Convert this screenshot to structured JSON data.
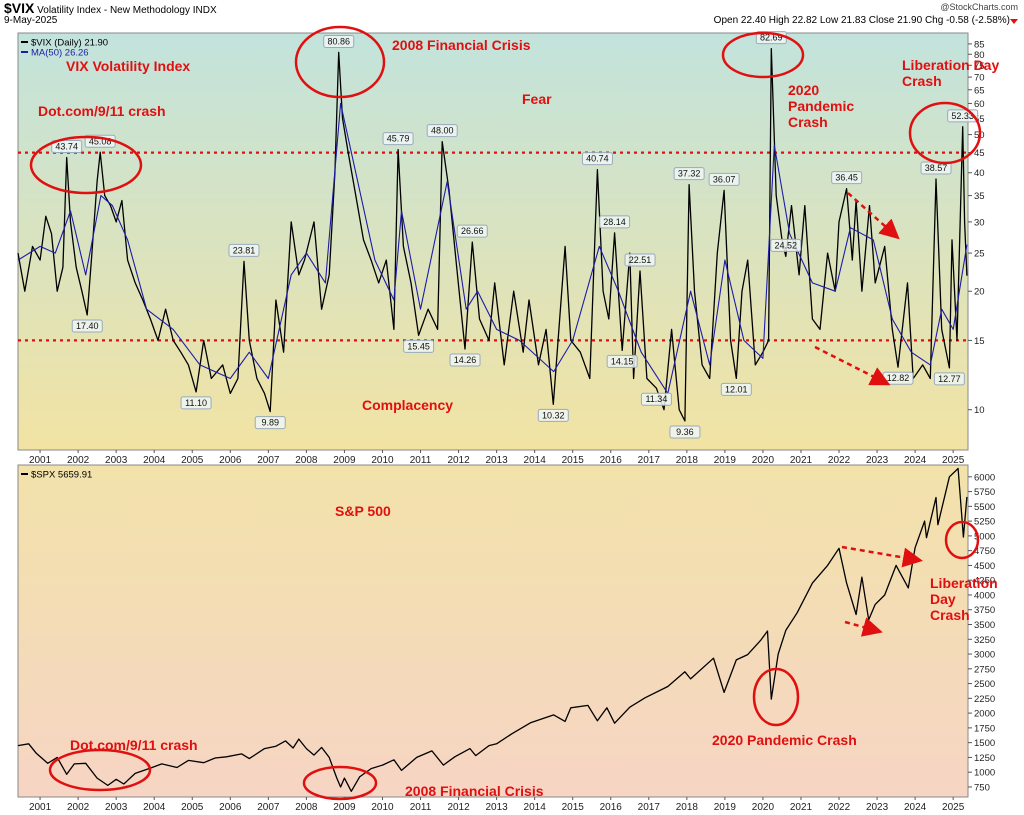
{
  "header": {
    "symbol": "$VIX",
    "name": "Volatility Index - New Methodology INDX",
    "date": "9-May-2025",
    "source": "@StockCharts.com",
    "ohlc": "Open 22.40 High 22.82 Low 21.83 Close 21.90",
    "change": "Chg -0.58 (-2.58%)"
  },
  "chart_data": [
    {
      "type": "line",
      "log_scale": true,
      "xlim": [
        2000.42,
        2025.39
      ],
      "xticks": [
        2001,
        2002,
        2003,
        2004,
        2005,
        2006,
        2007,
        2008,
        2009,
        2010,
        2011,
        2012,
        2013,
        2014,
        2015,
        2016,
        2017,
        2018,
        2019,
        2020,
        2021,
        2022,
        2023,
        2024,
        2025
      ],
      "ylim": [
        7.9,
        90.6
      ],
      "yticks": [
        10,
        15,
        20,
        25,
        30,
        35,
        40,
        45,
        50,
        55,
        60,
        65,
        70,
        75,
        80,
        85
      ],
      "reference_lines": [
        45,
        15
      ],
      "reference_color": "#e01010",
      "series": [
        {
          "name": "$VIX (Daily) 21.90",
          "color": "#000000",
          "x": [
            2000.42,
            2000.6,
            2000.8,
            2001.0,
            2001.15,
            2001.3,
            2001.45,
            2001.6,
            2001.7,
            2001.8,
            2001.95,
            2002.1,
            2002.24,
            2002.35,
            2002.5,
            2002.58,
            2002.7,
            2002.85,
            2003.0,
            2003.15,
            2003.3,
            2003.5,
            2003.7,
            2003.9,
            2004.1,
            2004.3,
            2004.5,
            2004.7,
            2004.9,
            2005.1,
            2005.3,
            2005.5,
            2005.8,
            2006.0,
            2006.2,
            2006.36,
            2006.5,
            2006.7,
            2006.9,
            2007.05,
            2007.2,
            2007.4,
            2007.6,
            2007.8,
            2007.95,
            2008.2,
            2008.4,
            2008.6,
            2008.75,
            2008.85,
            2008.95,
            2009.1,
            2009.3,
            2009.5,
            2009.7,
            2009.9,
            2010.1,
            2010.3,
            2010.41,
            2010.55,
            2010.75,
            2010.95,
            2011.2,
            2011.45,
            2011.57,
            2011.75,
            2011.95,
            2012.17,
            2012.36,
            2012.55,
            2012.8,
            2012.95,
            2013.2,
            2013.45,
            2013.7,
            2013.85,
            2014.1,
            2014.3,
            2014.49,
            2014.8,
            2014.95,
            2015.2,
            2015.45,
            2015.65,
            2015.8,
            2015.95,
            2016.1,
            2016.3,
            2016.5,
            2016.6,
            2016.77,
            2016.95,
            2017.2,
            2017.4,
            2017.6,
            2017.8,
            2017.95,
            2018.06,
            2018.2,
            2018.4,
            2018.6,
            2018.8,
            2018.98,
            2019.15,
            2019.3,
            2019.45,
            2019.6,
            2019.8,
            2020.0,
            2020.15,
            2020.22,
            2020.35,
            2020.5,
            2020.6,
            2020.75,
            2020.95,
            2021.1,
            2021.3,
            2021.5,
            2021.7,
            2021.9,
            2022.0,
            2022.2,
            2022.35,
            2022.45,
            2022.6,
            2022.8,
            2022.95,
            2023.2,
            2023.4,
            2023.55,
            2023.8,
            2023.95,
            2024.2,
            2024.4,
            2024.55,
            2024.7,
            2024.9,
            2024.97,
            2025.1,
            2025.25,
            2025.3,
            2025.36
          ],
          "values": [
            25,
            20,
            26,
            24,
            31,
            28,
            20,
            23,
            43.74,
            30,
            23,
            20,
            17.4,
            24,
            38,
            45.08,
            35,
            33,
            30,
            34,
            24,
            21,
            19,
            17,
            15,
            18,
            15,
            14,
            13,
            11.1,
            15,
            12,
            13,
            11,
            12,
            23.81,
            15,
            12,
            11,
            9.89,
            19,
            14,
            30,
            22,
            24,
            30,
            18,
            22,
            40,
            80.86,
            55,
            45,
            35,
            27,
            24,
            21,
            24,
            16,
            45.79,
            26,
            21,
            15.45,
            18,
            16,
            48.0,
            36,
            23,
            14.26,
            26.66,
            17,
            15,
            21,
            13,
            20,
            14,
            19,
            13,
            16,
            10.32,
            26,
            15,
            14,
            12,
            40.74,
            20,
            17,
            28.14,
            14.15,
            25,
            12,
            22.51,
            12,
            11.34,
            10,
            16,
            10,
            9.36,
            37.32,
            20,
            13,
            12,
            25,
            36.07,
            15,
            12.01,
            20,
            24,
            13,
            14,
            15,
            82.69,
            35,
            27,
            24.52,
            33,
            22,
            33,
            17,
            16,
            25,
            20,
            30,
            36.45,
            24,
            34,
            20,
            33,
            21,
            26,
            16,
            12.82,
            21,
            12,
            13,
            12,
            38.57,
            16,
            12.77,
            27,
            15,
            52.33,
            30,
            21.9
          ]
        },
        {
          "name": "MA(50) 26.26",
          "color": "#1c1ca8",
          "x": [
            2000.42,
            2001.0,
            2001.4,
            2001.8,
            2002.2,
            2002.6,
            2002.9,
            2003.3,
            2003.8,
            2004.5,
            2005.2,
            2006.0,
            2006.5,
            2007.0,
            2007.6,
            2008.0,
            2008.5,
            2008.9,
            2009.3,
            2009.8,
            2010.3,
            2010.5,
            2011.0,
            2011.7,
            2012.2,
            2012.5,
            2013.0,
            2013.6,
            2014.5,
            2015.0,
            2015.7,
            2016.2,
            2016.8,
            2017.5,
            2018.1,
            2018.6,
            2019.0,
            2019.5,
            2020.0,
            2020.3,
            2020.7,
            2021.3,
            2021.9,
            2022.3,
            2022.9,
            2023.4,
            2023.9,
            2024.4,
            2024.7,
            2025.0,
            2025.36
          ],
          "values": [
            24,
            26,
            25,
            32,
            22,
            35,
            33,
            27,
            18,
            16,
            13,
            12,
            14,
            12,
            22,
            25,
            21,
            60,
            40,
            24,
            19,
            32,
            18,
            38,
            18,
            20,
            16,
            15,
            12.5,
            15,
            26,
            20,
            14,
            11,
            20,
            13,
            24,
            15,
            13.5,
            47,
            28,
            21,
            20,
            29,
            27,
            17,
            14,
            13,
            18,
            16,
            26.26
          ]
        }
      ],
      "callouts": [
        {
          "x": 2001.7,
          "value": 43.74
        },
        {
          "x": 2002.58,
          "value": 45.08
        },
        {
          "x": 2002.24,
          "value": 17.4,
          "label": "17.40"
        },
        {
          "x": 2008.85,
          "value": 80.86
        },
        {
          "x": 2005.1,
          "value": 11.1,
          "label": "11.10"
        },
        {
          "x": 2006.36,
          "value": 23.81
        },
        {
          "x": 2007.05,
          "value": 9.89
        },
        {
          "x": 2010.41,
          "value": 45.79
        },
        {
          "x": 2010.95,
          "value": 15.45
        },
        {
          "x": 2011.57,
          "value": 48,
          "label": "48.00"
        },
        {
          "x": 2012.36,
          "value": 26.66
        },
        {
          "x": 2012.17,
          "value": 14.26
        },
        {
          "x": 2014.49,
          "value": 10.32
        },
        {
          "x": 2015.65,
          "value": 40.74
        },
        {
          "x": 2016.1,
          "value": 28.14
        },
        {
          "x": 2016.3,
          "value": 14.15
        },
        {
          "x": 2016.77,
          "value": 22.51
        },
        {
          "x": 2017.2,
          "value": 11.34
        },
        {
          "x": 2017.95,
          "value": 9.36
        },
        {
          "x": 2018.06,
          "value": 37.32
        },
        {
          "x": 2018.98,
          "value": 36.07
        },
        {
          "x": 2019.3,
          "value": 12.01
        },
        {
          "x": 2020.22,
          "value": 82.69
        },
        {
          "x": 2020.6,
          "value": 24.52
        },
        {
          "x": 2022.2,
          "value": 36.45
        },
        {
          "x": 2023.55,
          "value": 12.82
        },
        {
          "x": 2024.55,
          "value": 38.57
        },
        {
          "x": 2024.9,
          "value": 12.77
        },
        {
          "x": 2025.25,
          "value": 52.33
        }
      ],
      "annotations": [
        "VIX Volatility Index",
        "2008 Financial Crisis",
        "Dot.com/9/11 crash",
        "Fear",
        "Complacency",
        "2020 Pandemic Crash",
        "Liberation Day Crash"
      ]
    },
    {
      "type": "line",
      "log_scale": false,
      "xlim": [
        2000.42,
        2025.39
      ],
      "xticks": [
        2001,
        2002,
        2003,
        2004,
        2005,
        2006,
        2007,
        2008,
        2009,
        2010,
        2011,
        2012,
        2013,
        2014,
        2015,
        2016,
        2017,
        2018,
        2019,
        2020,
        2021,
        2022,
        2023,
        2024,
        2025
      ],
      "ylim": [
        580,
        6200
      ],
      "yticks": [
        750,
        1000,
        1250,
        1500,
        1750,
        2000,
        2250,
        2500,
        2750,
        3000,
        3250,
        3500,
        3750,
        4000,
        4250,
        4500,
        4750,
        5000,
        5250,
        5500,
        5750,
        6000
      ],
      "series": [
        {
          "name": "$SPX 5659.91",
          "color": "#000000",
          "x": [
            2000.42,
            2000.7,
            2000.9,
            2001.2,
            2001.45,
            2001.7,
            2001.9,
            2002.2,
            2002.5,
            2002.78,
            2003.0,
            2003.2,
            2003.5,
            2003.9,
            2004.2,
            2004.6,
            2004.9,
            2005.3,
            2005.6,
            2005.9,
            2006.3,
            2006.5,
            2006.9,
            2007.2,
            2007.45,
            2007.65,
            2007.8,
            2008.0,
            2008.2,
            2008.4,
            2008.6,
            2008.8,
            2008.9,
            2009.0,
            2009.18,
            2009.4,
            2009.7,
            2010.0,
            2010.3,
            2010.5,
            2010.9,
            2011.3,
            2011.6,
            2011.9,
            2012.3,
            2012.45,
            2012.8,
            2013.0,
            2013.4,
            2013.9,
            2014.5,
            2014.8,
            2014.95,
            2015.4,
            2015.65,
            2015.9,
            2016.1,
            2016.5,
            2016.9,
            2017.5,
            2017.95,
            2018.1,
            2018.7,
            2018.98,
            2019.3,
            2019.6,
            2019.95,
            2020.12,
            2020.22,
            2020.4,
            2020.6,
            2020.9,
            2021.3,
            2021.7,
            2022.0,
            2022.2,
            2022.45,
            2022.6,
            2022.78,
            2022.95,
            2023.2,
            2023.5,
            2023.82,
            2024.0,
            2024.25,
            2024.3,
            2024.55,
            2024.6,
            2024.9,
            2025.13,
            2025.27,
            2025.36
          ],
          "values": [
            1450,
            1480,
            1320,
            1150,
            1250,
            965,
            1140,
            1150,
            900,
            776,
            880,
            800,
            980,
            1070,
            1140,
            1080,
            1200,
            1160,
            1240,
            1260,
            1310,
            1230,
            1400,
            1440,
            1530,
            1410,
            1560,
            1400,
            1290,
            1420,
            1250,
            900,
            750,
            900,
            676,
            920,
            1060,
            1120,
            1210,
            1030,
            1250,
            1360,
            1120,
            1260,
            1400,
            1280,
            1450,
            1480,
            1650,
            1840,
            1970,
            1860,
            2090,
            2130,
            1870,
            2090,
            1830,
            2100,
            2260,
            2450,
            2700,
            2580,
            2930,
            2350,
            2900,
            2990,
            3240,
            3390,
            2237,
            3000,
            3400,
            3700,
            4200,
            4500,
            4790,
            4200,
            3670,
            4300,
            3580,
            3840,
            4000,
            4500,
            4120,
            4800,
            5250,
            4970,
            5650,
            5190,
            6000,
            6140,
            4980,
            5659.91
          ]
        }
      ],
      "annotations": [
        "S&P 500",
        "Dot.com/9/11 crash",
        "2008 Financial Crisis",
        "2020 Pandemic Crash",
        "Liberation Day Crash"
      ]
    }
  ]
}
